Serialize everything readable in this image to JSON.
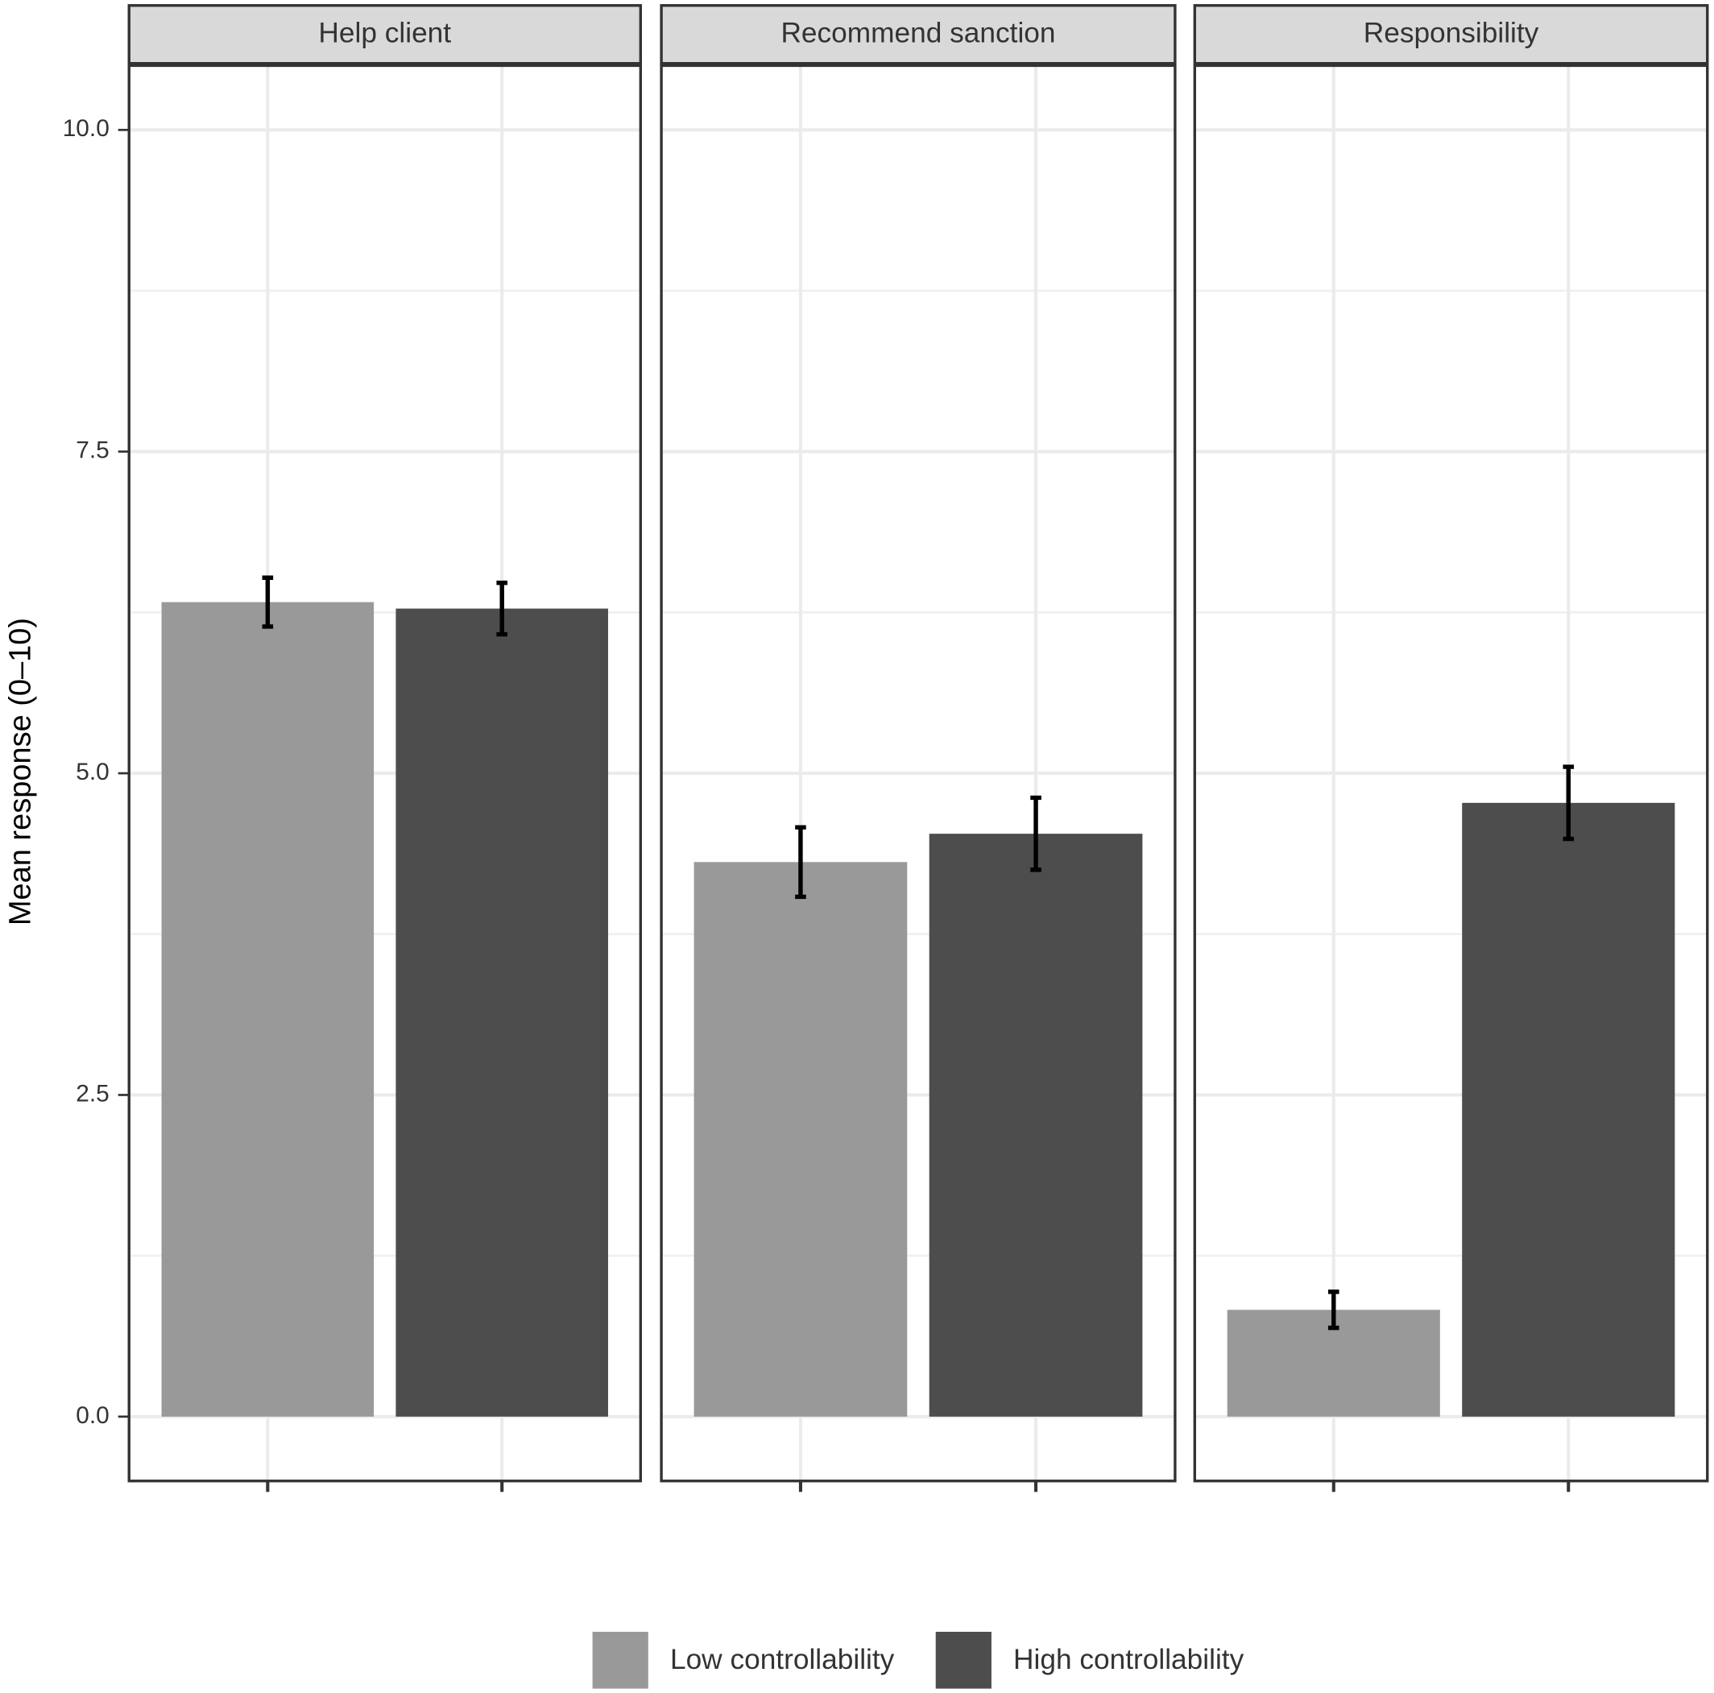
{
  "chart_data": {
    "type": "bar",
    "ylabel": "Mean response (0–10)",
    "categories": [
      "Help client",
      "Recommend sanction",
      "Responsibility"
    ],
    "series": [
      {
        "name": "Low controllability",
        "color": "#999999",
        "values": [
          6.33,
          4.31,
          0.83
        ],
        "errors": [
          0.19,
          0.27,
          0.14
        ]
      },
      {
        "name": "High controllability",
        "color": "#4d4d4d",
        "values": [
          6.28,
          4.53,
          4.77
        ],
        "errors": [
          0.2,
          0.28,
          0.28
        ]
      }
    ],
    "ylim": [
      -0.5,
      10.5
    ],
    "yticks": [
      {
        "value": 0,
        "label": "0.0"
      },
      {
        "value": 2.5,
        "label": "2.5"
      },
      {
        "value": 5,
        "label": "5.0"
      },
      {
        "value": 7.5,
        "label": "7.5"
      },
      {
        "value": 10,
        "label": "10.0"
      }
    ],
    "grid": true,
    "legend": "bottom"
  }
}
